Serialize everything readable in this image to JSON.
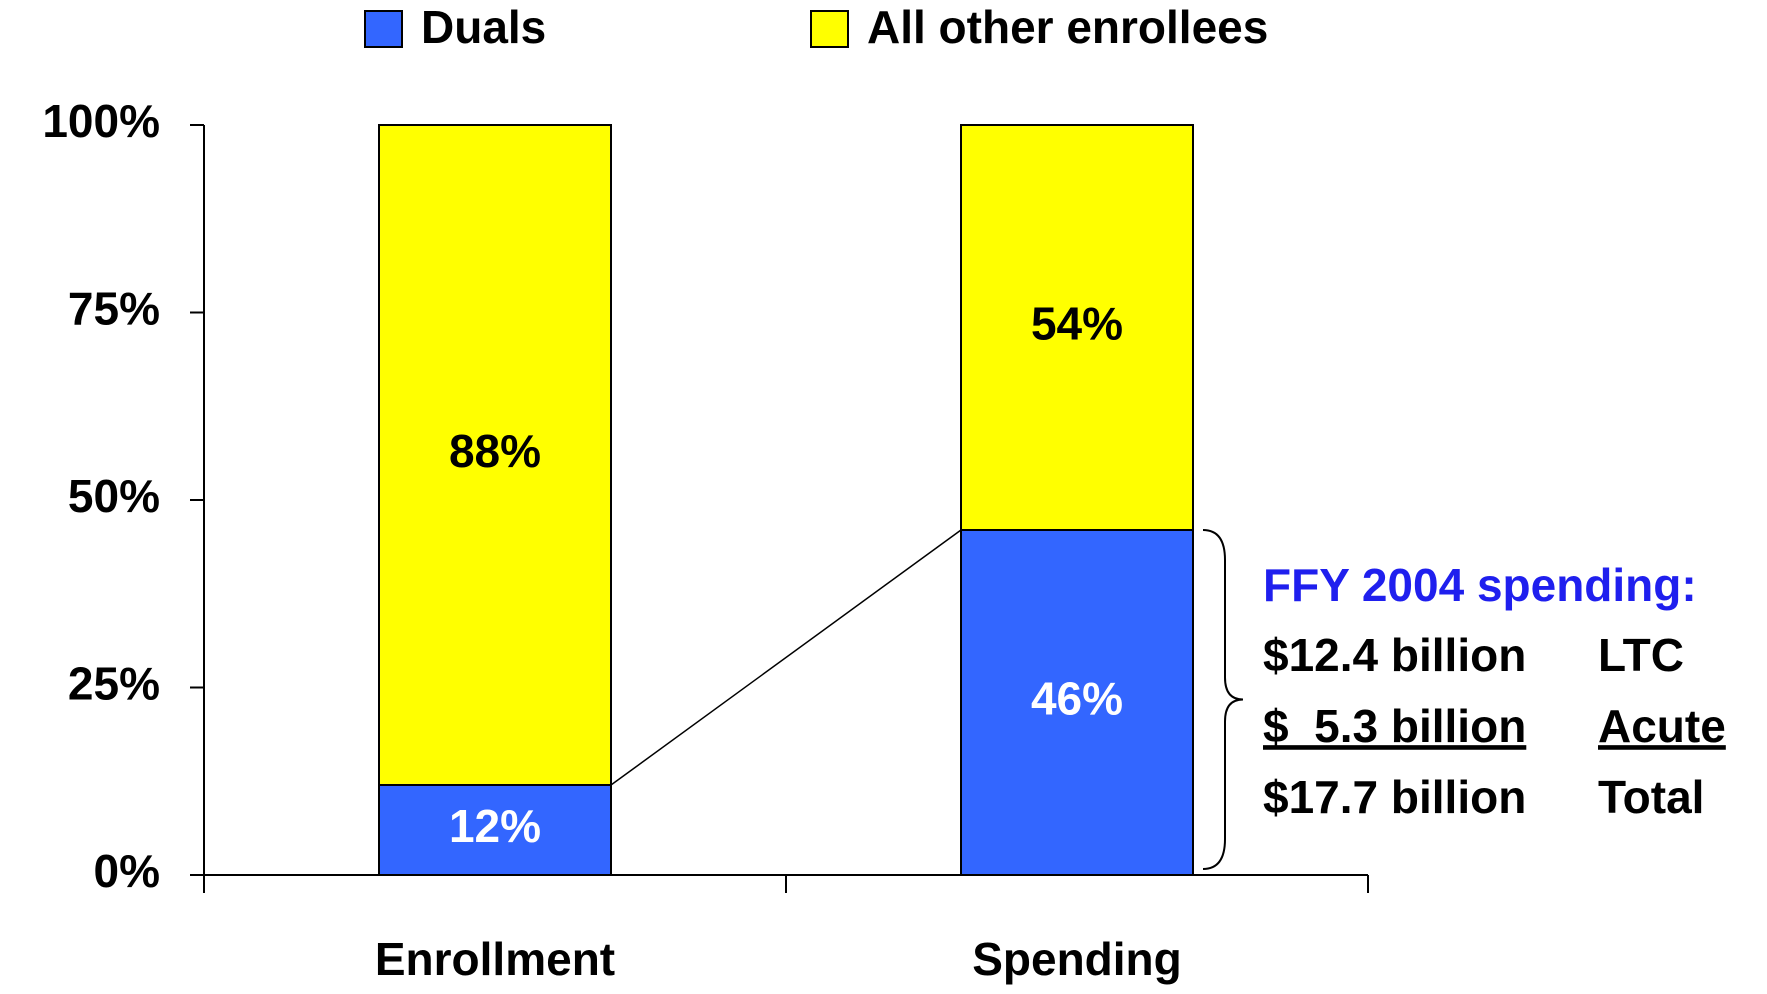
{
  "chart_data": {
    "type": "stacked_bar",
    "categories": [
      "Enrollment",
      "Spending"
    ],
    "series": [
      {
        "name": "Duals",
        "color": "#3366ff",
        "label_color": "#ffffff",
        "values": [
          12,
          46
        ],
        "value_labels": [
          "12%",
          "46%"
        ]
      },
      {
        "name": "All other enrollees",
        "color": "#ffff00",
        "label_color": "#000000",
        "values": [
          88,
          54
        ],
        "value_labels": [
          "88%",
          "54%"
        ]
      }
    ],
    "ylim": [
      0,
      100
    ],
    "yticks": [
      {
        "value": 0,
        "label": "0%"
      },
      {
        "value": 25,
        "label": "25%"
      },
      {
        "value": 50,
        "label": "50%"
      },
      {
        "value": 75,
        "label": "75%"
      },
      {
        "value": 100,
        "label": "100%"
      }
    ],
    "annotation": {
      "title": "FFY 2004 spending:",
      "rows": [
        [
          "$12.4 billion",
          "LTC"
        ],
        [
          "$  5.3 billion",
          "Acute"
        ],
        [
          "$17.7 billion",
          "Total"
        ]
      ]
    }
  }
}
